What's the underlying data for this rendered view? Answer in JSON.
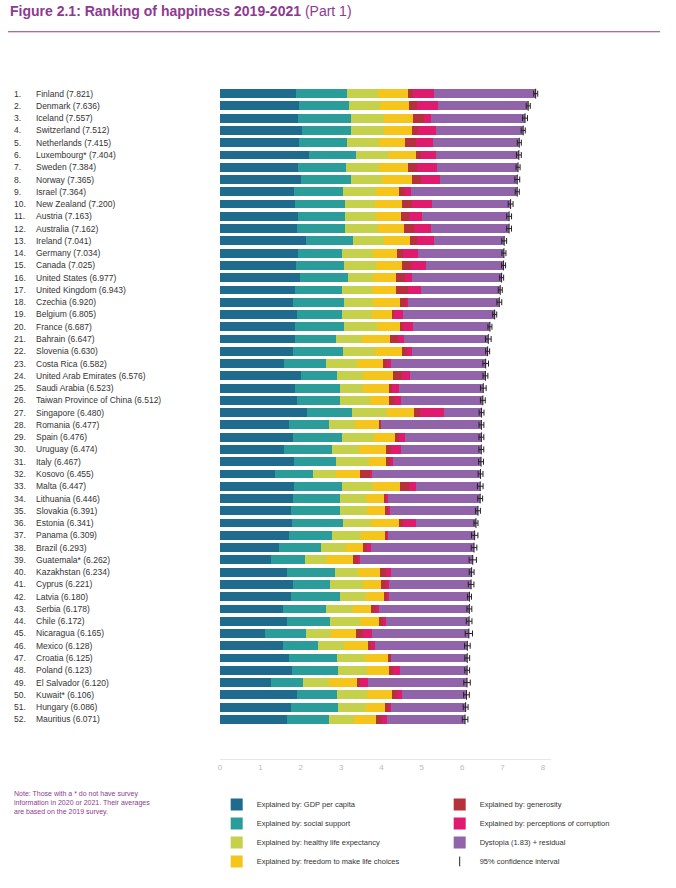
{
  "chart_data": {
    "type": "bar",
    "orientation": "horizontal",
    "stacked": true,
    "grid": false,
    "title": "Figure 2.1: Ranking of happiness 2019-2021",
    "subtitle": "(Part 1)",
    "note": [
      "Note: Those with a * do not have survey",
      "information in 2020 or 2021. Their averages",
      "are based on the 2019 survey."
    ],
    "ranks": [
      "1.",
      "2.",
      "3.",
      "4.",
      "5.",
      "6.",
      "7.",
      "8.",
      "9.",
      "10.",
      "11.",
      "12.",
      "13.",
      "14.",
      "15.",
      "16.",
      "17.",
      "18.",
      "19.",
      "20.",
      "21.",
      "22.",
      "23.",
      "24.",
      "25.",
      "26.",
      "27.",
      "28.",
      "29.",
      "30.",
      "31.",
      "32.",
      "33.",
      "34.",
      "35.",
      "36.",
      "37.",
      "38.",
      "39.",
      "40.",
      "41.",
      "42.",
      "43.",
      "44.",
      "45.",
      "46.",
      "47.",
      "48.",
      "49.",
      "50.",
      "51.",
      "52."
    ],
    "categories": [
      "Finland (7.821)",
      "Denmark (7.636)",
      "Iceland (7.557)",
      "Switzerland (7.512)",
      "Netherlands (7.415)",
      "Luxembourg* (7.404)",
      "Sweden (7.384)",
      "Norway (7.365)",
      "Israel (7.364)",
      "New Zealand (7.200)",
      "Austria (7.163)",
      "Australia (7.162)",
      "Ireland (7.041)",
      "Germany (7.034)",
      "Canada (7.025)",
      "United States (6.977)",
      "United Kingdom (6.943)",
      "Czechia (6.920)",
      "Belgium (6.805)",
      "France (6.687)",
      "Bahrain (6.647)",
      "Slovenia (6.630)",
      "Costa Rica (6.582)",
      "United Arab Emirates (6.576)",
      "Saudi Arabia (6.523)",
      "Taiwan Province of China (6.512)",
      "Singapore (6.480)",
      "Romania (6.477)",
      "Spain (6.476)",
      "Uruguay (6.474)",
      "Italy (6.467)",
      "Kosovo (6.455)",
      "Malta (6.447)",
      "Lithuania (6.446)",
      "Slovakia (6.391)",
      "Estonia (6.341)",
      "Panama (6.309)",
      "Brazil (6.293)",
      "Guatemala* (6.262)",
      "Kazakhstan (6.234)",
      "Cyprus (6.221)",
      "Latvia (6.180)",
      "Serbia (6.178)",
      "Chile (6.172)",
      "Nicaragua (6.165)",
      "Mexico (6.128)",
      "Croatia (6.125)",
      "Poland (6.123)",
      "El Salvador (6.120)",
      "Kuwait* (6.106)",
      "Hungary (6.086)",
      "Mauritius (6.071)"
    ],
    "series": [
      {
        "name": "Explained by: GDP per capita",
        "color": "#1f6b8e",
        "values": [
          1.892,
          1.953,
          1.936,
          2.026,
          1.945,
          2.209,
          1.92,
          1.997,
          1.826,
          1.852,
          1.931,
          1.9,
          2.129,
          1.924,
          1.886,
          1.982,
          1.867,
          1.815,
          1.907,
          1.863,
          1.854,
          1.81,
          1.584,
          2.017,
          1.87,
          1.897,
          2.149,
          1.719,
          1.808,
          1.593,
          1.834,
          1.362,
          1.835,
          1.809,
          1.756,
          1.791,
          1.7,
          1.462,
          1.274,
          1.669,
          1.815,
          1.761,
          1.55,
          1.651,
          1.105,
          1.552,
          1.705,
          1.776,
          1.268,
          1.904,
          1.755,
          1.648
        ]
      },
      {
        "name": "Explained by: social support",
        "color": "#2a9d9b",
        "values": [
          1.258,
          1.243,
          1.32,
          1.226,
          1.206,
          1.155,
          1.204,
          1.239,
          1.221,
          1.235,
          1.165,
          1.203,
          1.166,
          1.088,
          1.188,
          1.182,
          1.143,
          1.26,
          1.106,
          1.219,
          1.029,
          1.249,
          1.054,
          0.887,
          1.092,
          1.084,
          1.127,
          0.975,
          1.211,
          1.186,
          1.049,
          0.949,
          1.176,
          1.176,
          1.223,
          1.247,
          1.079,
          1.044,
          0.831,
          1.183,
          0.909,
          1.209,
          1.086,
          1.08,
          1.029,
          0.886,
          1.183,
          1.152,
          0.781,
          0.983,
          1.18,
          1.045
        ]
      },
      {
        "name": "Explained by: healthy life expectancy",
        "color": "#c5d04b",
        "values": [
          0.775,
          0.777,
          0.803,
          0.822,
          0.787,
          0.79,
          0.803,
          0.786,
          0.818,
          0.752,
          0.774,
          0.806,
          0.779,
          0.776,
          0.783,
          0.628,
          0.75,
          0.715,
          0.764,
          0.808,
          0.625,
          0.769,
          0.744,
          0.65,
          0.577,
          0.74,
          0.851,
          0.661,
          0.808,
          0.662,
          0.799,
          0.569,
          0.778,
          0.632,
          0.654,
          0.701,
          0.709,
          0.615,
          0.522,
          0.577,
          0.819,
          0.638,
          0.658,
          0.748,
          0.617,
          0.623,
          0.709,
          0.722,
          0.642,
          0.747,
          0.676,
          0.621
        ]
      },
      {
        "name": "Explained by: freedom to make life choices",
        "color": "#f6c51c",
        "values": [
          0.736,
          0.719,
          0.718,
          0.677,
          0.651,
          0.7,
          0.724,
          0.728,
          0.568,
          0.68,
          0.623,
          0.647,
          0.627,
          0.585,
          0.659,
          0.574,
          0.597,
          0.66,
          0.492,
          0.567,
          0.693,
          0.685,
          0.661,
          0.731,
          0.651,
          0.458,
          0.672,
          0.596,
          0.505,
          0.666,
          0.422,
          0.6,
          0.658,
          0.443,
          0.457,
          0.698,
          0.598,
          0.419,
          0.662,
          0.541,
          0.448,
          0.458,
          0.435,
          0.459,
          0.617,
          0.61,
          0.555,
          0.543,
          0.701,
          0.617,
          0.472,
          0.55
        ]
      },
      {
        "name": "Explained by: generosity",
        "color": "#b5323c",
        "values": [
          0.109,
          0.188,
          0.27,
          0.147,
          0.271,
          0.12,
          0.218,
          0.217,
          0.155,
          0.245,
          0.193,
          0.255,
          0.19,
          0.163,
          0.217,
          0.22,
          0.289,
          0.158,
          0.049,
          0.07,
          0.199,
          0.118,
          0.089,
          0.217,
          0.08,
          0.15,
          0.163,
          0.036,
          0.101,
          0.132,
          0.118,
          0.237,
          0.233,
          0.045,
          0.077,
          0.099,
          0.054,
          0.099,
          0.139,
          0.132,
          0.123,
          0.062,
          0.141,
          0.111,
          0.164,
          0.081,
          0.08,
          0.087,
          0.088,
          0.134,
          0.093,
          0.159
        ]
      },
      {
        "name": "Explained by: perceptions of corruption",
        "color": "#e01a6c",
        "values": [
          0.534,
          0.532,
          0.191,
          0.461,
          0.419,
          0.388,
          0.512,
          0.474,
          0.143,
          0.483,
          0.329,
          0.406,
          0.408,
          0.358,
          0.368,
          0.177,
          0.329,
          0.048,
          0.204,
          0.266,
          0.155,
          0.115,
          0.102,
          0.213,
          0.164,
          0.164,
          0.587,
          0.013,
          0.149,
          0.246,
          0.065,
          0.05,
          0.168,
          0.05,
          0.037,
          0.319,
          0.033,
          0.093,
          0.045,
          0.14,
          0.062,
          0.055,
          0.072,
          0.064,
          0.243,
          0.095,
          0.015,
          0.182,
          0.187,
          0.13,
          0.055,
          0.103
        ]
      },
      {
        "name": "Dystopia (1.83) + residual",
        "color": "#9163a8",
        "values": [
          2.517,
          2.224,
          2.319,
          2.153,
          2.136,
          2.042,
          2.003,
          1.924,
          2.633,
          1.953,
          2.148,
          1.945,
          1.742,
          2.14,
          1.924,
          2.214,
          1.968,
          2.264,
          2.283,
          1.894,
          2.092,
          1.884,
          2.348,
          1.861,
          2.089,
          2.019,
          0.931,
          2.477,
          1.894,
          1.989,
          2.18,
          2.688,
          1.599,
          2.291,
          2.187,
          1.486,
          2.136,
          2.561,
          2.789,
          1.992,
          2.045,
          1.997,
          2.236,
          2.059,
          2.39,
          2.281,
          1.878,
          1.661,
          2.453,
          1.591,
          1.855,
          1.945
        ]
      }
    ],
    "confidence_interval": {
      "name": "95% confidence interval",
      "color": "#222222",
      "scores": [
        7.821,
        7.636,
        7.557,
        7.512,
        7.415,
        7.404,
        7.384,
        7.365,
        7.364,
        7.2,
        7.163,
        7.162,
        7.041,
        7.034,
        7.025,
        6.977,
        6.943,
        6.92,
        6.805,
        6.687,
        6.647,
        6.63,
        6.582,
        6.576,
        6.523,
        6.512,
        6.48,
        6.477,
        6.476,
        6.474,
        6.467,
        6.455,
        6.447,
        6.446,
        6.391,
        6.341,
        6.309,
        6.293,
        6.262,
        6.234,
        6.221,
        6.18,
        6.178,
        6.172,
        6.165,
        6.128,
        6.125,
        6.123,
        6.12,
        6.106,
        6.086,
        6.071
      ],
      "error": [
        0.05,
        0.05,
        0.06,
        0.05,
        0.05,
        0.06,
        0.05,
        0.06,
        0.05,
        0.06,
        0.06,
        0.06,
        0.06,
        0.05,
        0.05,
        0.05,
        0.05,
        0.06,
        0.05,
        0.05,
        0.07,
        0.05,
        0.07,
        0.06,
        0.07,
        0.06,
        0.06,
        0.06,
        0.06,
        0.06,
        0.06,
        0.06,
        0.07,
        0.06,
        0.06,
        0.05,
        0.08,
        0.07,
        0.09,
        0.06,
        0.07,
        0.05,
        0.06,
        0.07,
        0.09,
        0.07,
        0.06,
        0.06,
        0.08,
        0.07,
        0.06,
        0.07
      ]
    },
    "xlim": [
      0,
      8.2
    ],
    "xticks": [
      0,
      1,
      2,
      3,
      4,
      5,
      6,
      7,
      8
    ]
  }
}
